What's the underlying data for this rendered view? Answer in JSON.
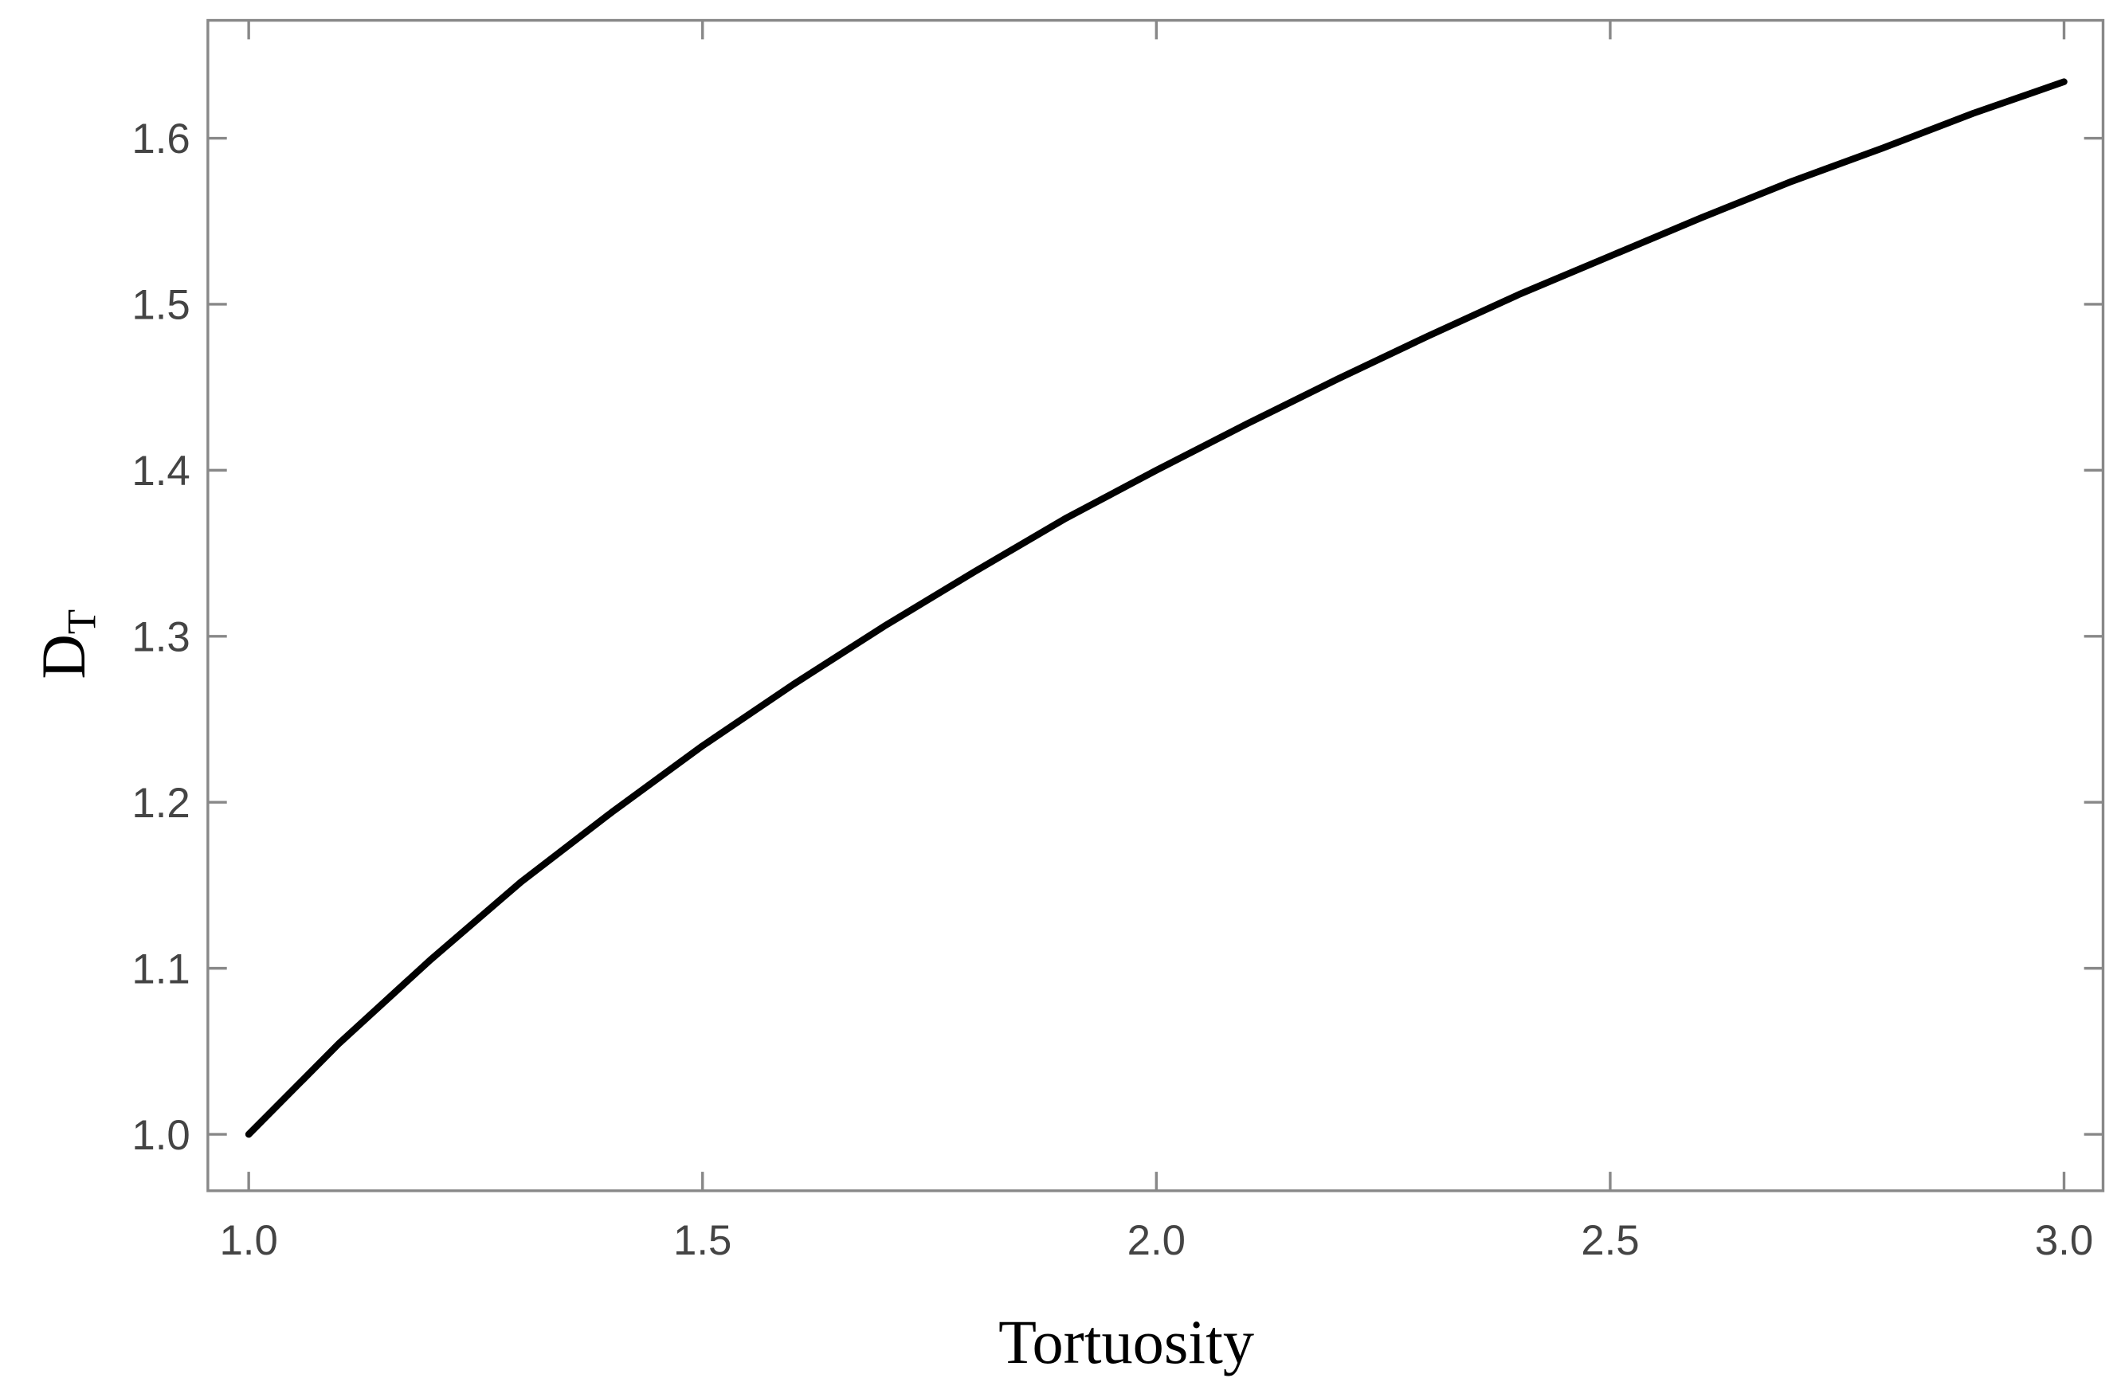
{
  "chart_data": {
    "type": "line",
    "x_label": "Tortuosity",
    "y_label": "D",
    "y_label_subscript": "T",
    "x": [
      1.0,
      1.1,
      1.2,
      1.3,
      1.4,
      1.5,
      1.6,
      1.7,
      1.8,
      1.9,
      2.0,
      2.1,
      2.2,
      2.3,
      2.4,
      2.5,
      2.6,
      2.7,
      2.8,
      2.9,
      3.0
    ],
    "series": [
      {
        "color": "#000000",
        "values": [
          1.0,
          1.055,
          1.105,
          1.152,
          1.194,
          1.234,
          1.271,
          1.306,
          1.339,
          1.371,
          1.4,
          1.428,
          1.455,
          1.481,
          1.506,
          1.529,
          1.552,
          1.574,
          1.594,
          1.615,
          1.634
        ]
      }
    ],
    "xlim": [
      0.955,
      3.043
    ],
    "ylim": [
      0.966,
      1.671
    ],
    "xticks": [
      {
        "value": 1.0,
        "label": "1.0"
      },
      {
        "value": 1.5,
        "label": "1.5"
      },
      {
        "value": 2.0,
        "label": "2.0"
      },
      {
        "value": 2.5,
        "label": "2.5"
      },
      {
        "value": 3.0,
        "label": "3.0"
      }
    ],
    "yticks": [
      {
        "value": 1.0,
        "label": "1.0"
      },
      {
        "value": 1.1,
        "label": "1.1"
      },
      {
        "value": 1.2,
        "label": "1.2"
      },
      {
        "value": 1.3,
        "label": "1.3"
      },
      {
        "value": 1.4,
        "label": "1.4"
      },
      {
        "value": 1.5,
        "label": "1.5"
      },
      {
        "value": 1.6,
        "label": "1.6"
      }
    ],
    "grid": false
  }
}
